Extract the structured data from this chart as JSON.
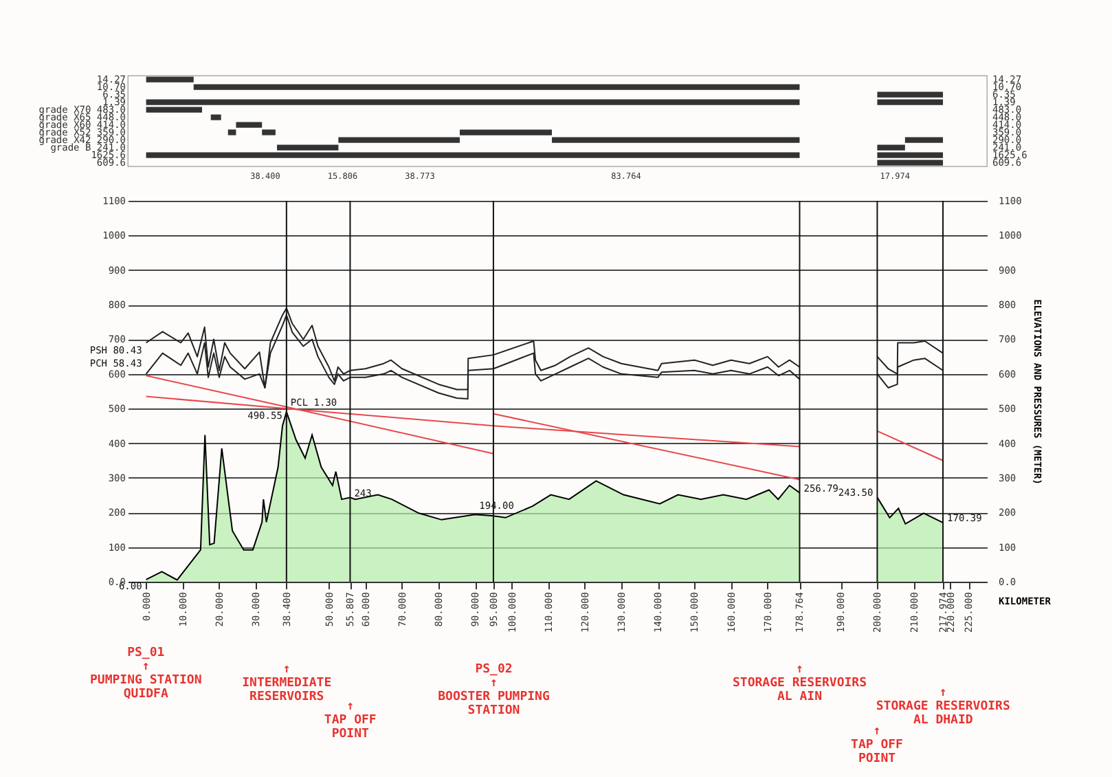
{
  "chart_data": [
    {
      "type": "bar",
      "orientation": "horizontal",
      "tick_labels": "y",
      "xlim": [
        -5,
        230
      ],
      "categories": [
        "14.27",
        "10.70",
        "6.35",
        "1.39",
        "grade X70 483.0",
        "grade X65 448.0",
        "grade X60 414.0",
        "grade X52 359.0",
        "grade X42 290.0",
        "grade B 241.0",
        "1625.6",
        "609.6"
      ],
      "y2_categories": [
        "14.27",
        "10.70",
        "6.35",
        "1.39",
        "483.0",
        "448.0",
        "414.0",
        "359.0",
        "290.0",
        "241.0",
        "1625.6",
        "609.6"
      ],
      "series": [
        {
          "color": "#333333",
          "base": [
            0,
            13,
            200,
            0,
            0,
            17.7,
            24.6,
            22.4,
            52.6,
            35.8,
            0,
            200
          ],
          "values": [
            13,
            165.764,
            17.974,
            178.764,
            15.3,
            2.8,
            7.1,
            2.2,
            33.2,
            16.8,
            178.764,
            17.974
          ]
        },
        {
          "color": "#333333",
          "base": [
            null,
            null,
            null,
            200,
            null,
            null,
            null,
            31.7,
            111,
            200,
            200,
            null
          ],
          "values": [
            null,
            null,
            null,
            17.974,
            null,
            null,
            null,
            3.7,
            67.764,
            7.6,
            17.974,
            null
          ]
        },
        {
          "color": "#333333",
          "base": [
            null,
            null,
            null,
            null,
            null,
            null,
            null,
            85.8,
            207.6,
            null,
            null,
            null
          ],
          "values": [
            null,
            null,
            null,
            null,
            null,
            null,
            null,
            25.2,
            10.374,
            null,
            null,
            null
          ]
        }
      ],
      "annotations": [
        "38.400",
        "15.806",
        "38.773",
        "83.764",
        "17.974"
      ]
    },
    {
      "type": "line",
      "xlabel": "KILOMETER",
      "y2label": "ELEVATIONS AND PRESSURES (METER)",
      "grid": "y",
      "xlim": [
        -5,
        230
      ],
      "ylim": [
        0,
        1100
      ],
      "y2lim": [
        0,
        1100
      ],
      "xticks": [
        {
          "value": 0,
          "label": "0.000"
        },
        {
          "value": 10,
          "label": "10.000"
        },
        {
          "value": 20,
          "label": "20.000"
        },
        {
          "value": 30,
          "label": "30.000"
        },
        {
          "value": 38.4,
          "label": "38.400"
        },
        {
          "value": 50,
          "label": "50.000"
        },
        {
          "value": 55.807,
          "label": "55.807"
        },
        {
          "value": 60,
          "label": "60.000"
        },
        {
          "value": 70,
          "label": "70.000"
        },
        {
          "value": 80,
          "label": "80.000"
        },
        {
          "value": 90,
          "label": "90.000"
        },
        {
          "value": 95,
          "label": "95.000"
        },
        {
          "value": 100,
          "label": "100.000"
        },
        {
          "value": 110,
          "label": "110.000"
        },
        {
          "value": 120,
          "label": "120.000"
        },
        {
          "value": 130,
          "label": "130.000"
        },
        {
          "value": 140,
          "label": "140.000"
        },
        {
          "value": 150,
          "label": "150.000"
        },
        {
          "value": 160,
          "label": "160.000"
        },
        {
          "value": 170,
          "label": "170.000"
        },
        {
          "value": 178.764,
          "label": "178.764"
        },
        {
          "value": 190,
          "label": "190.000"
        },
        {
          "value": 200,
          "label": "200.000"
        },
        {
          "value": 210,
          "label": "210.000"
        },
        {
          "value": 217.974,
          "label": "217.974"
        },
        {
          "value": 220,
          "label": "220.000"
        },
        {
          "value": 225,
          "label": "225.000"
        }
      ],
      "yticks": [
        {
          "value": 0,
          "label": "0.0"
        },
        100,
        200,
        300,
        400,
        500,
        600,
        700,
        800,
        900,
        1000,
        1100
      ],
      "y2ticks": [
        {
          "value": 0,
          "label": "0.0"
        },
        100,
        200,
        300,
        400,
        500,
        600,
        700,
        800,
        900,
        1000,
        1100
      ],
      "series": [
        {
          "type": "area",
          "color": "#b3eca8",
          "x": [
            0,
            4.3,
            8.5,
            14.9,
            16.1,
            17.4,
            18.6,
            20.7,
            23.6,
            26.7,
            29.2,
            31.7,
            32.1,
            32.9,
            36.1,
            37.3,
            38.4,
            41,
            43.5,
            45.4,
            47.9,
            51,
            51.9,
            53.5,
            55.807,
            57.2,
            63.4,
            67.2,
            74.6,
            80.8,
            90,
            95,
            98.3,
            105.7,
            110.7,
            115.7,
            123.1,
            130.6,
            140.5,
            145.5,
            151.7,
            157.9,
            164.2,
            170.4,
            172.9,
            176,
            178.764
          ],
          "values": [
            6,
            29,
            5,
            92,
            424,
            107,
            111,
            385,
            147,
            92,
            92,
            172,
            238,
            172,
            331,
            450,
            490.55,
            410,
            357,
            424,
            331,
            278,
            318,
            238,
            243,
            238,
            251,
            238,
            198,
            179,
            194,
            190,
            185,
            218,
            251,
            238,
            291,
            251,
            225,
            251,
            238,
            251,
            238,
            265,
            238,
            278,
            256.79
          ]
        },
        {
          "type": "area",
          "color": "#b3eca8",
          "x": [
            200,
            203.4,
            205.8,
            207.7,
            212.7,
            217.974
          ],
          "values": [
            243.5,
            185,
            212,
            167,
            198,
            170.39
          ]
        },
        {
          "type": "line",
          "color": "#222222",
          "x": [
            0,
            4.5,
            9.5,
            11.5,
            14,
            16,
            17,
            18.5,
            20,
            21.5,
            23,
            27,
            31,
            32.5,
            34,
            37.3,
            38.4,
            40,
            43,
            45.4,
            47,
            50,
            51.5,
            52.5,
            54,
            55.8,
            60,
            65,
            67,
            70,
            80,
            85,
            88,
            88.1,
            95,
            106,
            106.5,
            108,
            112,
            116,
            121,
            125,
            130,
            140,
            141,
            150,
            155,
            160,
            165,
            170,
            173,
            176,
            178.764
          ],
          "values": [
            690,
            722,
            690,
            718,
            650,
            735,
            620,
            700,
            610,
            690,
            660,
            615,
            663,
            560,
            690,
            770,
            790,
            745,
            700,
            740,
            680,
            620,
            580,
            620,
            600,
            610,
            615,
            630,
            640,
            615,
            570,
            555,
            555,
            645,
            655,
            695,
            640,
            610,
            625,
            650,
            675,
            650,
            630,
            610,
            630,
            640,
            625,
            640,
            630,
            650,
            620,
            640,
            620
          ]
        },
        {
          "type": "line",
          "color": "#222222",
          "x": [
            200,
            203,
            205.5,
            205.6,
            210,
            213,
            217.974
          ],
          "values": [
            650,
            615,
            600,
            690,
            690,
            695,
            660
          ]
        },
        {
          "type": "line",
          "color": "#222222",
          "x": [
            0,
            4.5,
            9.5,
            11.5,
            14,
            16,
            17,
            18.5,
            20,
            21.5,
            23,
            27,
            31,
            32.5,
            34,
            37.3,
            38.4,
            40,
            43,
            45.4,
            47,
            50,
            51.5,
            52.5,
            54,
            55.8,
            60,
            65,
            67,
            70,
            80,
            85,
            88,
            88.1,
            95,
            106,
            106.5,
            108,
            112,
            116,
            121,
            125,
            130,
            140,
            141,
            150,
            155,
            160,
            165,
            170,
            173,
            176,
            178.764
          ],
          "values": [
            600,
            660,
            625,
            660,
            600,
            690,
            590,
            660,
            590,
            650,
            620,
            585,
            600,
            560,
            660,
            740,
            770,
            720,
            680,
            700,
            650,
            590,
            570,
            600,
            580,
            590,
            590,
            600,
            610,
            590,
            545,
            530,
            528,
            610,
            615,
            660,
            600,
            580,
            600,
            620,
            645,
            620,
            600,
            590,
            605,
            610,
            600,
            610,
            600,
            620,
            595,
            610,
            585
          ]
        },
        {
          "type": "line",
          "color": "#222222",
          "x": [
            200,
            203,
            205.5,
            205.6,
            210,
            213,
            217.974
          ],
          "values": [
            600,
            560,
            570,
            620,
            640,
            645,
            610
          ]
        },
        {
          "type": "line",
          "color": "#e8474c",
          "x": [
            0,
            38.4,
            95
          ],
          "values": [
            595,
            505,
            370
          ]
        },
        {
          "type": "line",
          "color": "#e8474c",
          "x": [
            95,
            178.764
          ],
          "values": [
            485,
            295
          ]
        },
        {
          "type": "line",
          "color": "#e8474c",
          "x": [
            200,
            217.974
          ],
          "values": [
            435,
            350
          ]
        },
        {
          "type": "line",
          "color": "#e8474c",
          "x": [
            0,
            38.4,
            95,
            178.764
          ],
          "values": [
            535,
            500,
            450,
            390
          ]
        }
      ],
      "ref_lines": [
        {
          "axis": "x",
          "value": 38.4
        },
        {
          "axis": "x",
          "value": 55.807
        },
        {
          "axis": "x",
          "value": 95
        },
        {
          "axis": "x",
          "value": 178.764
        },
        {
          "axis": "x",
          "value": 200
        },
        {
          "axis": "x",
          "value": 217.974
        }
      ],
      "annotations": [
        {
          "text": "PSH 80.43",
          "x": 0,
          "y": 610
        },
        {
          "text": "PCH 58.43",
          "x": 0,
          "y": 596
        },
        {
          "text": "PCL 1.30",
          "x": 38.4,
          "y": 505
        },
        {
          "text": "490.55",
          "x": 38.4,
          "y": 490.55
        },
        {
          "text": "243",
          "x": 55.807,
          "y": 243
        },
        {
          "text": "194.00",
          "x": 90,
          "y": 194
        },
        {
          "text": "256.79",
          "x": 178.764,
          "y": 256.79
        },
        {
          "text": "243.50",
          "x": 200,
          "y": 243.5
        },
        {
          "text": "170.39",
          "x": 217.974,
          "y": 170.39
        },
        {
          "text": "6.00",
          "x": 0,
          "y": 6
        },
        "PS_01\n↑\nPUMPING STATION\nQUIDFA",
        "↑\nINTERMEDIATE\nRESERVOIRS",
        "↑\nTAP OFF\nPOINT",
        "PS_02\n↑\nBOOSTER PUMPING\nSTATION",
        "↑\nSTORAGE RESERVOIRS\nAL AIN",
        "↑\nSTORAGE RESERVOIRS\nAL DHAID",
        "↑\nTAP OFF\nPOINT"
      ]
    }
  ]
}
